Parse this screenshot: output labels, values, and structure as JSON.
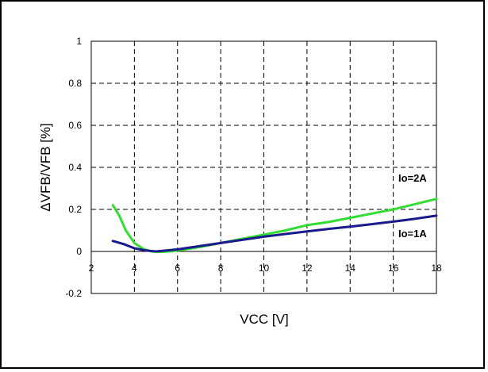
{
  "chart_data": {
    "type": "line",
    "xlabel": "VCC [V]",
    "ylabel": "ΔVFB/VFB [%]",
    "xlim": [
      2,
      18
    ],
    "ylim": [
      -0.2,
      1
    ],
    "x_ticks": [
      "2",
      "4",
      "6",
      "8",
      "10",
      "12",
      "14",
      "16",
      "18"
    ],
    "y_ticks": [
      "-0.2",
      "0",
      "0.2",
      "0.4",
      "0.6",
      "0.8",
      "1"
    ],
    "grid": true,
    "series": [
      {
        "name": "Io=2A",
        "color": "#33dd33",
        "x": [
          3.0,
          3.3,
          3.6,
          4.0,
          4.4,
          4.8,
          5.2,
          5.6,
          6.0,
          7.0,
          8.0,
          9.0,
          10.0,
          11.0,
          12.0,
          13.0,
          14.0,
          15.0,
          16.0,
          17.0,
          18.0
        ],
        "y": [
          0.22,
          0.17,
          0.1,
          0.04,
          0.012,
          0.0,
          -0.002,
          0.0,
          0.004,
          0.02,
          0.04,
          0.06,
          0.08,
          0.1,
          0.125,
          0.14,
          0.16,
          0.18,
          0.2,
          0.225,
          0.25
        ]
      },
      {
        "name": "Io=1A",
        "color": "#1a1a8c",
        "x": [
          3.0,
          3.5,
          4.0,
          4.5,
          5.0,
          5.5,
          6.0,
          7.0,
          8.0,
          9.0,
          10.0,
          11.0,
          12.0,
          13.0,
          14.0,
          15.0,
          16.0,
          17.0,
          18.0
        ],
        "y": [
          0.05,
          0.035,
          0.015,
          0.005,
          0.0,
          0.005,
          0.01,
          0.025,
          0.04,
          0.055,
          0.07,
          0.083,
          0.095,
          0.107,
          0.118,
          0.13,
          0.142,
          0.155,
          0.17
        ]
      }
    ]
  }
}
